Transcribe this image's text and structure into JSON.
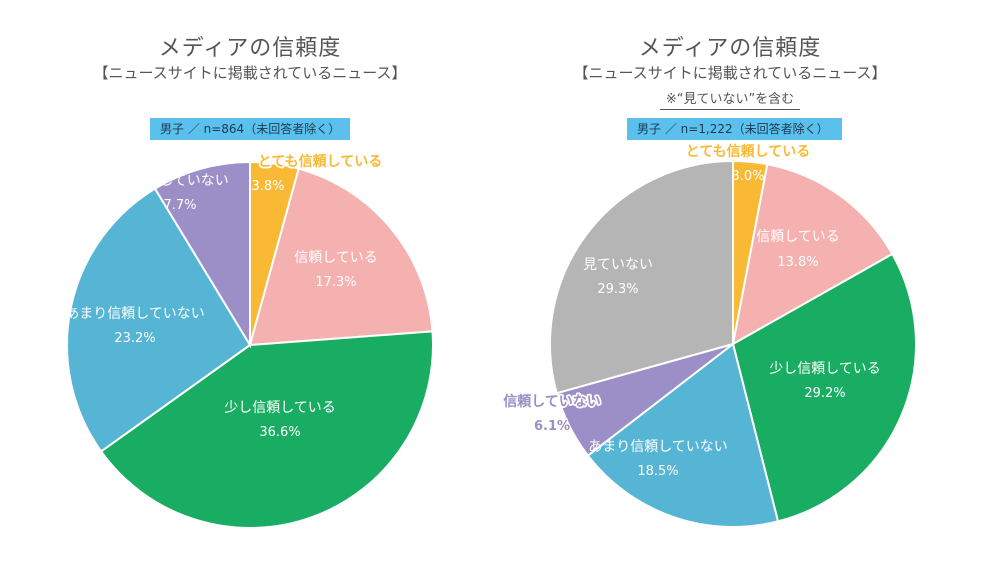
{
  "chart_data": [
    {
      "type": "pie",
      "title": "メディアの信頼度",
      "subtitle": "【ニュースサイトに掲載されているニュース】",
      "note": "",
      "sample": "男子 ／ n=864（未回答者除く）",
      "slices": [
        {
          "label": "とても信頼している",
          "pct_label": "3.8%",
          "value": 3.8,
          "color": "#f9b934",
          "label_color": "#f9b934",
          "pct_color": "#ffffff",
          "outline": true
        },
        {
          "label": "信頼している",
          "pct_label": "17.3%",
          "value": 17.3,
          "color": "#f4b1b0",
          "label_color": "#ffffff",
          "pct_color": "#ffffff",
          "outline": false
        },
        {
          "label": "少し信頼している",
          "pct_label": "36.6%",
          "value": 36.6,
          "color": "#19ad63",
          "label_color": "#ffffff",
          "pct_color": "#ffffff",
          "outline": false
        },
        {
          "label": "あまり信頼していない",
          "pct_label": "23.2%",
          "value": 23.2,
          "color": "#56b5d4",
          "label_color": "#ffffff",
          "pct_color": "#ffffff",
          "outline": false
        },
        {
          "label": "信頼していない",
          "pct_label": "7.7%",
          "value": 7.7,
          "color": "#9c8ec7",
          "label_color": "#ffffff",
          "pct_color": "#ffffff",
          "outline": false
        }
      ]
    },
    {
      "type": "pie",
      "title": "メディアの信頼度",
      "subtitle": "【ニュースサイトに掲載されているニュース】",
      "note": "※“見ていない”を含む",
      "sample": "男子 ／ n=1,222（未回答者除く）",
      "slices": [
        {
          "label": "とても信頼している",
          "pct_label": "3.0%",
          "value": 3.0,
          "color": "#f9b934",
          "label_color": "#f9b934",
          "pct_color": "#ffffff",
          "outline": true
        },
        {
          "label": "信頼している",
          "pct_label": "13.8%",
          "value": 13.8,
          "color": "#f4b1b0",
          "label_color": "#ffffff",
          "pct_color": "#ffffff",
          "outline": false
        },
        {
          "label": "少し信頼している",
          "pct_label": "29.2%",
          "value": 29.2,
          "color": "#19ad63",
          "label_color": "#ffffff",
          "pct_color": "#ffffff",
          "outline": false
        },
        {
          "label": "あまり信頼していない",
          "pct_label": "18.5%",
          "value": 18.5,
          "color": "#56b5d4",
          "label_color": "#ffffff",
          "pct_color": "#ffffff",
          "outline": false
        },
        {
          "label": "信頼していない",
          "pct_label": "6.1%",
          "value": 6.1,
          "color": "#9c8ec7",
          "label_color": "#ffffff",
          "pct_color": "#ffffff",
          "outline": true
        },
        {
          "label": "見ていない",
          "pct_label": "29.3%",
          "value": 29.3,
          "color": "#b5b5b5",
          "label_color": "#ffffff",
          "pct_color": "#ffffff",
          "outline": false
        }
      ]
    }
  ]
}
